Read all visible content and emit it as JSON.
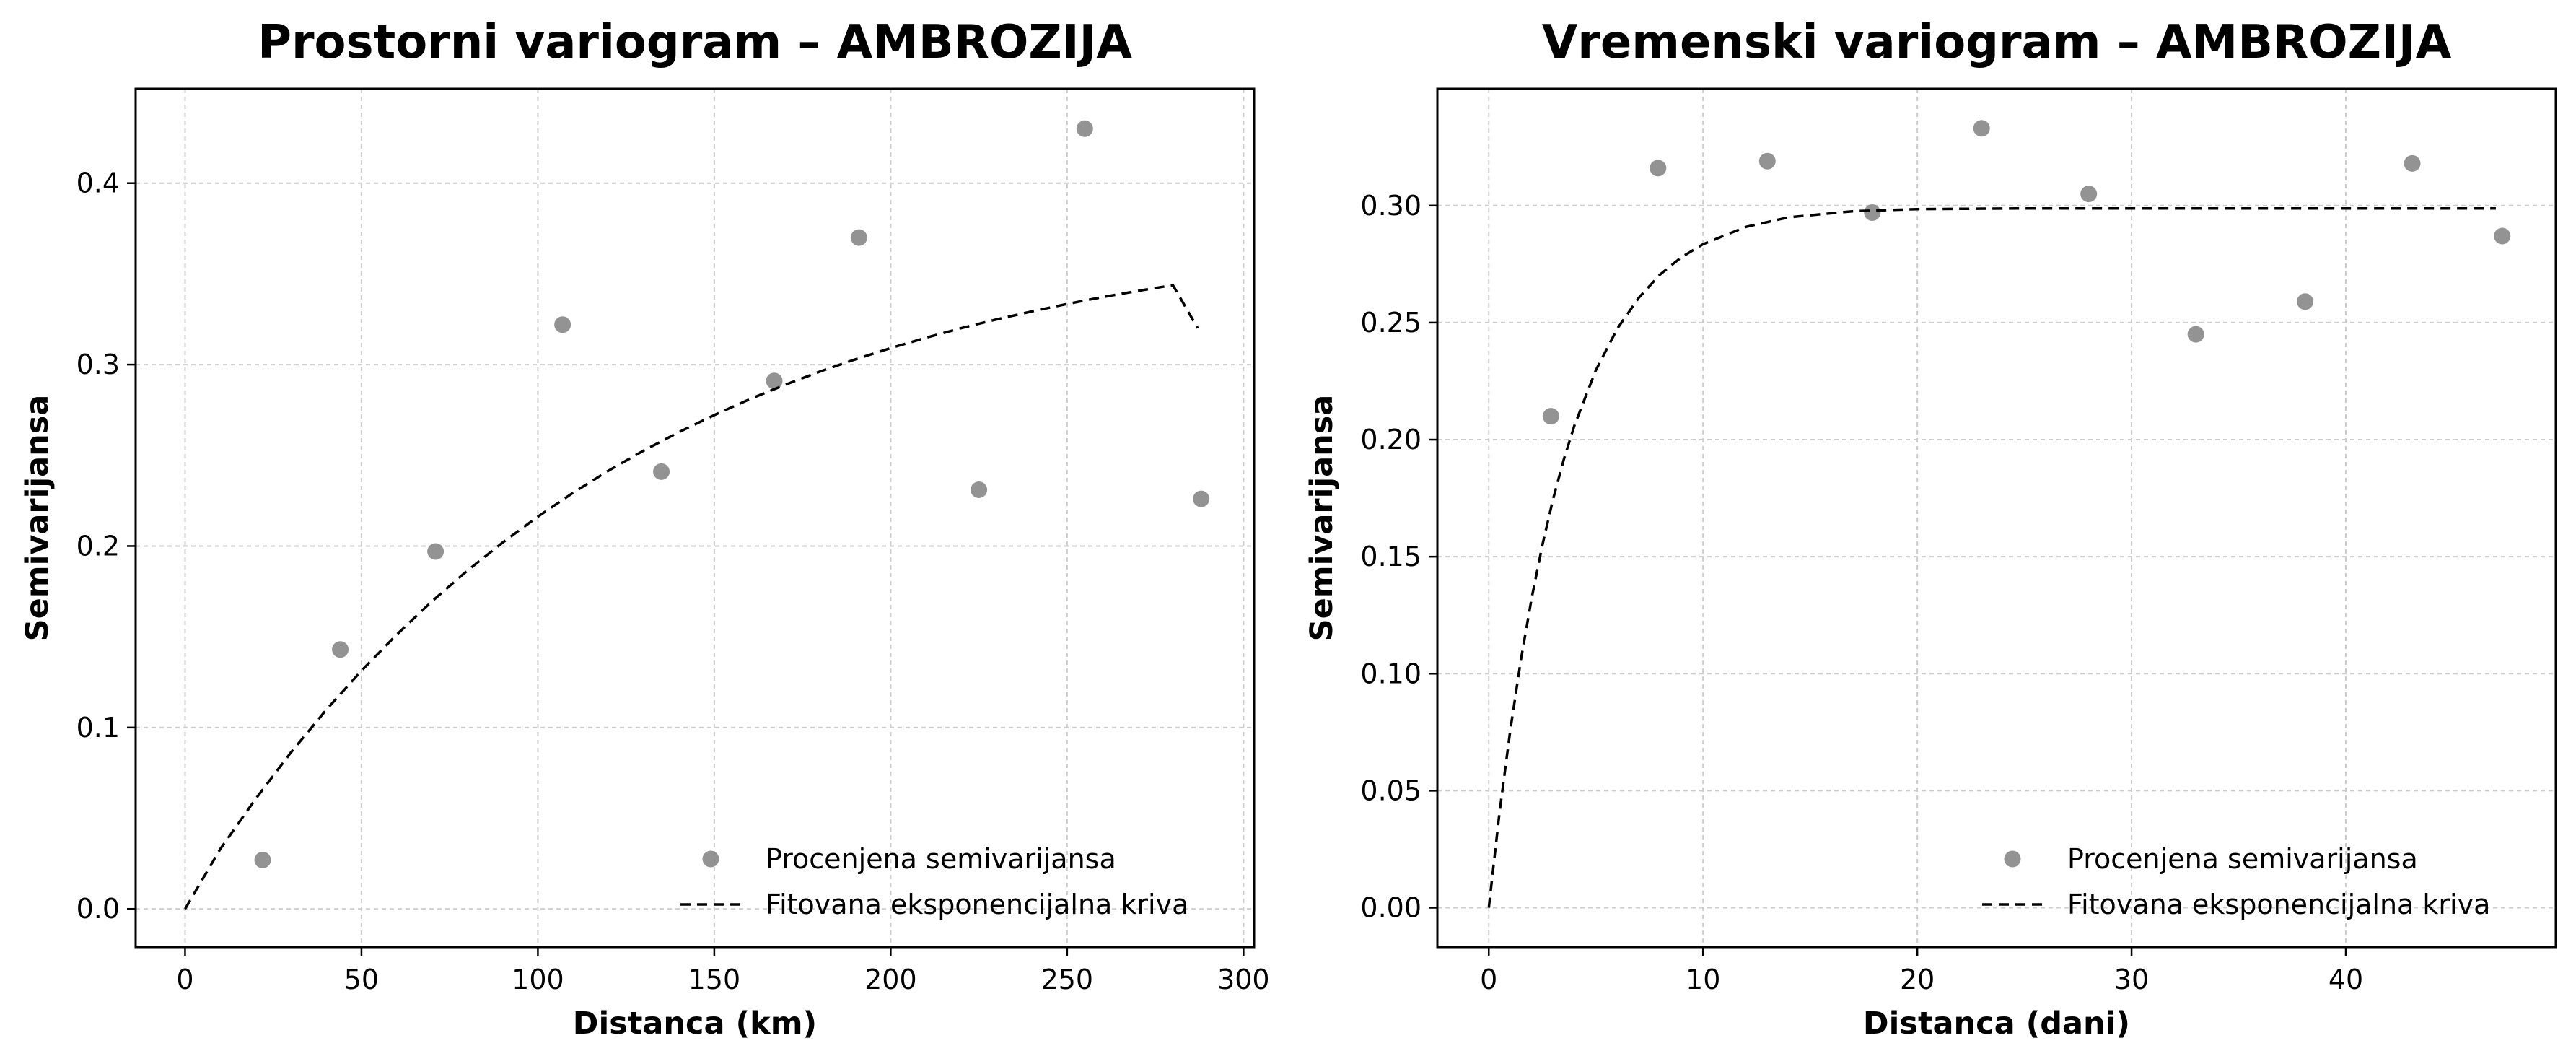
{
  "chart_data": [
    {
      "type": "scatter",
      "title": "Prostorni variogram – AMBROZIJA",
      "xlabel": "Distanca (km)",
      "ylabel": "Semivarijansa",
      "xlim": [
        -14,
        303
      ],
      "ylim": [
        -0.021,
        0.452
      ],
      "xticks": [
        0,
        50,
        100,
        150,
        200,
        250,
        300
      ],
      "xtick_labels": [
        "0",
        "50",
        "100",
        "150",
        "200",
        "250",
        "300"
      ],
      "yticks": [
        0.0,
        0.1,
        0.2,
        0.3,
        0.4
      ],
      "ytick_labels": [
        "0.0",
        "0.1",
        "0.2",
        "0.3",
        "0.4"
      ],
      "grid": true,
      "legend_position": "lower-right",
      "series": [
        {
          "name": "Procenjena semivarijansa",
          "kind": "scatter",
          "color": "#808080",
          "x": [
            22,
            44,
            71,
            107,
            135,
            167,
            191,
            225,
            255,
            288
          ],
          "y": [
            0.027,
            0.143,
            0.197,
            0.322,
            0.241,
            0.291,
            0.37,
            0.231,
            0.43,
            0.226
          ]
        },
        {
          "name": "Fitovana eksponencijalna kriva",
          "kind": "line",
          "style": "dashed",
          "color": "#000000",
          "x": [
            0,
            10,
            20,
            30,
            40,
            50,
            60,
            70,
            80,
            90,
            100,
            110,
            120,
            130,
            140,
            150,
            160,
            170,
            180,
            190,
            200,
            210,
            220,
            230,
            240,
            250,
            260,
            270,
            280,
            287
          ],
          "y": [
            0.0,
            0.0331,
            0.0606,
            0.0862,
            0.1097,
            0.1313,
            0.1512,
            0.1696,
            0.1864,
            0.2019,
            0.2162,
            0.2294,
            0.2415,
            0.2526,
            0.2628,
            0.2722,
            0.2809,
            0.2888,
            0.2962,
            0.3029,
            0.3091,
            0.3148,
            0.3201,
            0.3249,
            0.3293,
            0.3334,
            0.3372,
            0.3406,
            0.3438,
            0.3201
          ]
        }
      ]
    },
    {
      "type": "scatter",
      "title": "Vremenski variogram – AMBROZIJA",
      "xlabel": "Distanca (dani)",
      "ylabel": "Semivarijansa",
      "xlim": [
        -2.4,
        49.8
      ],
      "ylim": [
        -0.0168,
        0.3499
      ],
      "xticks": [
        0,
        10,
        20,
        30,
        40
      ],
      "xtick_labels": [
        "0",
        "10",
        "20",
        "30",
        "40"
      ],
      "yticks": [
        0.0,
        0.05,
        0.1,
        0.15,
        0.2,
        0.25,
        0.3
      ],
      "ytick_labels": [
        "0.00",
        "0.05",
        "0.10",
        "0.15",
        "0.20",
        "0.25",
        "0.30"
      ],
      "grid": true,
      "legend_position": "lower-right",
      "series": [
        {
          "name": "Procenjena semivarijansa",
          "kind": "scatter",
          "color": "#808080",
          "x": [
            2.9,
            7.9,
            13.0,
            17.9,
            23.0,
            28.0,
            33.0,
            38.1,
            43.1,
            47.3
          ],
          "y": [
            0.21,
            0.316,
            0.319,
            0.297,
            0.333,
            0.305,
            0.245,
            0.259,
            0.318,
            0.287
          ]
        },
        {
          "name": "Fitovana eksponencijalna kriva",
          "kind": "line",
          "style": "dashed",
          "color": "#000000",
          "x": [
            0,
            0.5,
            1,
            1.5,
            2,
            2.5,
            3,
            3.5,
            4,
            5,
            6,
            7,
            8,
            9,
            10,
            12,
            14,
            17,
            20,
            25,
            30,
            35,
            40,
            45,
            47
          ],
          "y": [
            0.0,
            0.0406,
            0.0757,
            0.106,
            0.1323,
            0.1549,
            0.1745,
            0.1915,
            0.2061,
            0.2297,
            0.2474,
            0.2606,
            0.2706,
            0.278,
            0.2835,
            0.2909,
            0.295,
            0.2976,
            0.2985,
            0.2988,
            0.2988,
            0.2988,
            0.2988,
            0.2988,
            0.2988
          ]
        }
      ]
    }
  ]
}
